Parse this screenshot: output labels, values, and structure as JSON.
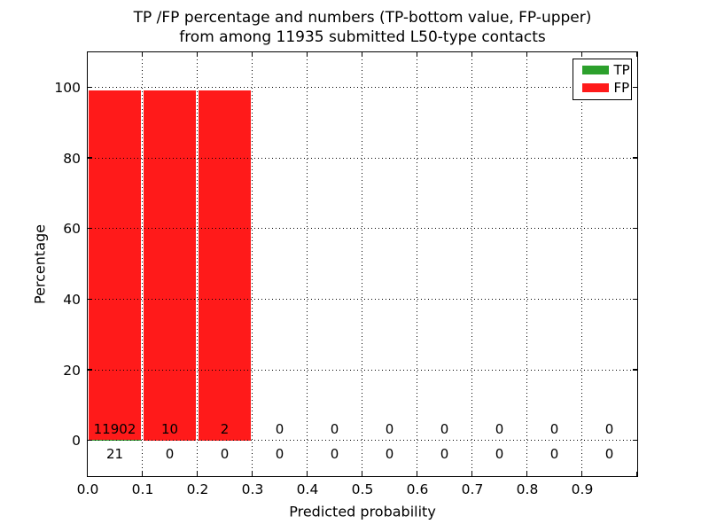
{
  "title_line1": "TP /FP percentage and numbers (TP-bottom value, FP-upper)",
  "title_line2": "from among 11935 submitted L50-type contacts",
  "colors": {
    "tp": "#2ca02c",
    "fp": "#ff1a1a",
    "text": "#000000",
    "grid": "#000000",
    "background": "#ffffff"
  },
  "legend": {
    "items": [
      {
        "label": "TP",
        "color_key": "tp"
      },
      {
        "label": "FP",
        "color_key": "fp"
      }
    ]
  },
  "chart_data": {
    "type": "bar",
    "stacked": true,
    "title": "TP /FP percentage and numbers (TP-bottom value, FP-upper) from among 11935 submitted L50-type contacts",
    "xlabel": "Predicted probability",
    "ylabel": "Percentage",
    "xlim": [
      0.0,
      1.0
    ],
    "ylim": [
      -10,
      110
    ],
    "bin_width": 0.1,
    "categories": [
      "0.0-0.1",
      "0.1-0.2",
      "0.2-0.3",
      "0.3-0.4",
      "0.4-0.5",
      "0.5-0.6",
      "0.6-0.7",
      "0.7-0.8",
      "0.8-0.9",
      "0.9-1.0"
    ],
    "x_tick_labels": [
      "0.0",
      "0.1",
      "0.2",
      "0.3",
      "0.4",
      "0.5",
      "0.6",
      "0.7",
      "0.8",
      "0.9"
    ],
    "y_tick_values": [
      0,
      20,
      40,
      60,
      80,
      100
    ],
    "total_submitted": 11935,
    "series": [
      {
        "name": "TP",
        "color": "#2ca02c",
        "counts": [
          21,
          0,
          0,
          0,
          0,
          0,
          0,
          0,
          0,
          0
        ],
        "percentages": [
          0.18,
          0,
          0,
          0,
          0,
          0,
          0,
          0,
          0,
          0
        ]
      },
      {
        "name": "FP",
        "color": "#ff1a1a",
        "counts": [
          11902,
          10,
          2,
          0,
          0,
          0,
          0,
          0,
          0,
          0
        ],
        "percentages": [
          99.82,
          100,
          100,
          0,
          0,
          0,
          0,
          0,
          0,
          0
        ]
      }
    ],
    "grid": "dotted",
    "legend_position": "upper right"
  }
}
